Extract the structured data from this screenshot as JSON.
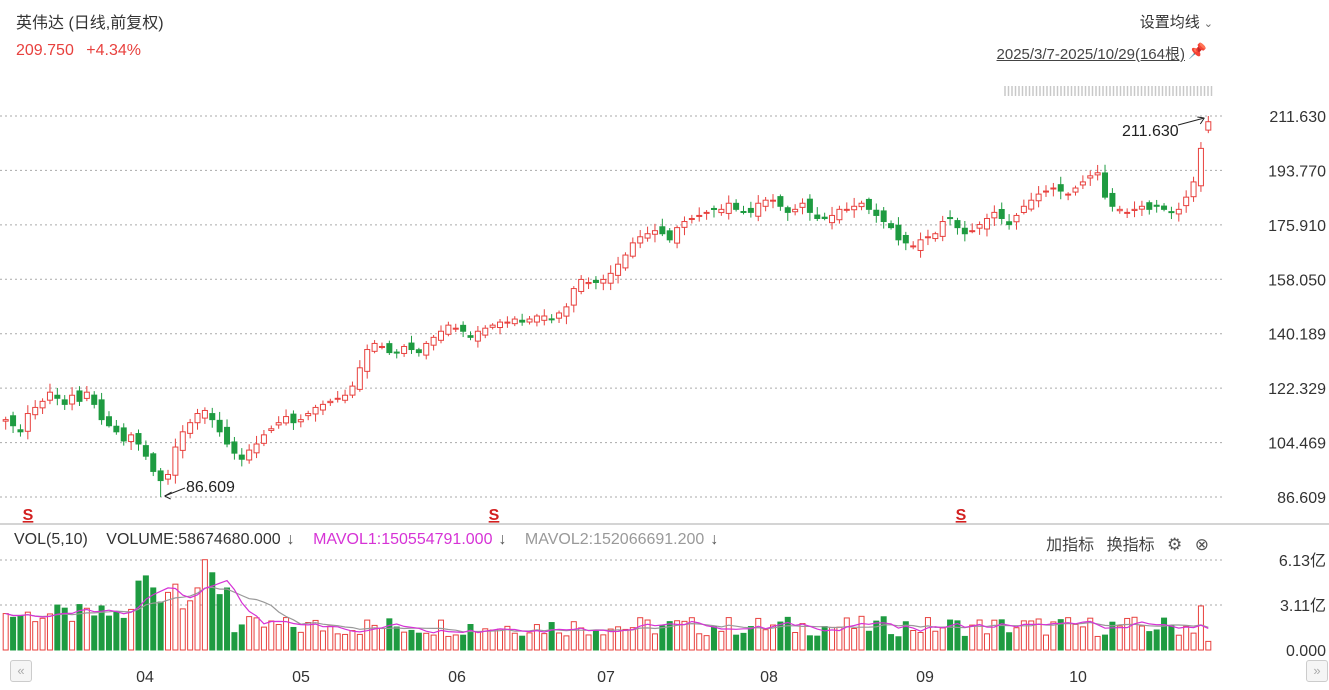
{
  "header": {
    "title": "英伟达 (日线,前复权)",
    "last_price": "209.750",
    "change_pct": "+4.34%",
    "ma_setting_label": "设置均线",
    "date_range": "2025/3/7-2025/10/29(164根)"
  },
  "price_axis": [
    "211.630",
    "193.770",
    "175.910",
    "158.050",
    "140.189",
    "122.329",
    "104.469",
    "86.609"
  ],
  "annotations": {
    "high_label": "211.630",
    "low_label": "86.609"
  },
  "event_marker": "S",
  "volume_panel": {
    "vol_label": "VOL(5,10)",
    "volume": "VOLUME:58674680.000",
    "mavol1": "MAVOL1:150554791.000",
    "mavol2": "MAVOL2:152066691.200",
    "axis": [
      "6.13亿",
      "3.11亿",
      "0.000"
    ],
    "add_indicator": "加指标",
    "switch_indicator": "换指标"
  },
  "x_axis_months": [
    "04",
    "05",
    "06",
    "07",
    "08",
    "09",
    "10"
  ],
  "colors": {
    "up": "#e8413e",
    "down": "#1e9b41",
    "mavol1": "#d633d6",
    "mavol2": "#999999"
  },
  "chart_data": {
    "type": "candlestick",
    "title": "英伟达 (日线,前复权)",
    "date_range": "2025/3/7-2025/10/29",
    "bars": 164,
    "ylim": [
      86.609,
      211.63
    ],
    "high": 211.63,
    "low": 86.609,
    "last": 209.75,
    "close_series": [
      112,
      110,
      108,
      114,
      116,
      118,
      121,
      119,
      117,
      120,
      118,
      121,
      117,
      112,
      110,
      108,
      105,
      107,
      104,
      100,
      95,
      92,
      94,
      103,
      108,
      111,
      114,
      115,
      112,
      108,
      104,
      101,
      99,
      102,
      104,
      107,
      109,
      111,
      113,
      111,
      112,
      114,
      116,
      117,
      118,
      119,
      120,
      123,
      129,
      135,
      137,
      136,
      134,
      134,
      136,
      135,
      134,
      137,
      139,
      141,
      143,
      142,
      141,
      139,
      141,
      142,
      143,
      144,
      144,
      145,
      144,
      145,
      146,
      146,
      145,
      147,
      149,
      155,
      158,
      157,
      157,
      158,
      160,
      163,
      166,
      170,
      172,
      173,
      174,
      173,
      171,
      175,
      177,
      178,
      179,
      180,
      181,
      181,
      183,
      181,
      180,
      180,
      183,
      184,
      184,
      182,
      180,
      181,
      183,
      180,
      178,
      178,
      179,
      181,
      181,
      182,
      183,
      181,
      179,
      177,
      175,
      171,
      170,
      169,
      171,
      172,
      173,
      177,
      178,
      175,
      173,
      174,
      176,
      178,
      180,
      178,
      176,
      179,
      182,
      184,
      186,
      187,
      188,
      187,
      186,
      188,
      190,
      192,
      193,
      185,
      182,
      181,
      180,
      181,
      182,
      181,
      182,
      181,
      180,
      181,
      185,
      190,
      201,
      209.75
    ],
    "volume_axis_labels": [
      "6.13亿",
      "3.11亿",
      "0.000"
    ],
    "volume_ylim": [
      0,
      613000000
    ],
    "last_volume": 58674680,
    "mavol1_last": 150554791,
    "mavol2_last": 152066691.2
  }
}
